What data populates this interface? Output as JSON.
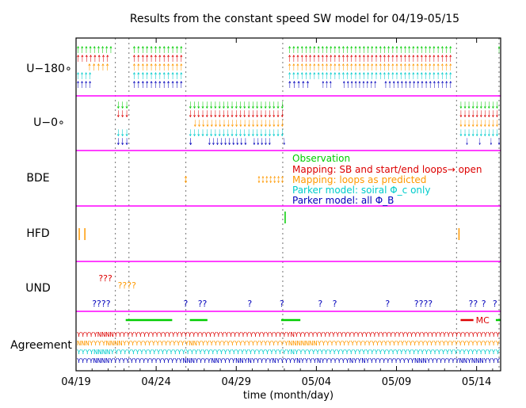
{
  "chart_data": {
    "type": "event-timeline",
    "title": "Results from the constant speed SW model for 04/19-05/15",
    "xlabel": "time (month/day)",
    "x_range_days": [
      0,
      26.5
    ],
    "x_ticks": [
      {
        "day": 0,
        "label": "04/19"
      },
      {
        "day": 5,
        "label": "04/24"
      },
      {
        "day": 10,
        "label": "04/29"
      },
      {
        "day": 15,
        "label": "05/04"
      },
      {
        "day": 20,
        "label": "05/09"
      },
      {
        "day": 25,
        "label": "05/14"
      }
    ],
    "dashed_lines_day": [
      2.45,
      3.3,
      6.85,
      12.9,
      23.75,
      26.4
    ],
    "rows": [
      {
        "name": "u180",
        "label": "U−180∘"
      },
      {
        "name": "u0",
        "label": "U−0∘"
      },
      {
        "name": "bde",
        "label": "BDE"
      },
      {
        "name": "hfd",
        "label": "HFD"
      },
      {
        "name": "und",
        "label": "UND"
      },
      {
        "name": "agreement",
        "label": "Agreement"
      }
    ],
    "colors": {
      "observation": "#00cc00",
      "mapping_sb": "#dd0000",
      "mapping_loops": "#ff9900",
      "parker_spiral": "#00cccc",
      "parker_all": "#0000bb",
      "panel_border": "#ff00ff"
    },
    "legend": [
      {
        "key": "observation",
        "text": "Observation"
      },
      {
        "key": "mapping_sb",
        "text": "Mapping: SB and start/end loops→ open"
      },
      {
        "key": "mapping_loops",
        "text": "Mapping: loops as predicted"
      },
      {
        "key": "parker_spiral",
        "text": "Parker model: soiral Φ_c only"
      },
      {
        "key": "parker_all",
        "text": "Parker model: all Φ_B"
      }
    ],
    "u180": {
      "glyph": "↑",
      "series": [
        {
          "key": "observation",
          "intervals": [
            [
              0,
              2.3
            ],
            [
              3.5,
              6.7
            ],
            [
              13.2,
              23.5
            ],
            [
              26.3,
              26.4
            ]
          ]
        },
        {
          "key": "mapping_sb",
          "intervals": [
            [
              0,
              2.1
            ],
            [
              3.5,
              6.7
            ],
            [
              13.2,
              23.5
            ]
          ]
        },
        {
          "key": "mapping_loops",
          "intervals": [
            [
              0.7,
              2.1
            ],
            [
              3.5,
              6.7
            ],
            [
              13.2,
              23.5
            ]
          ]
        },
        {
          "key": "parker_spiral",
          "intervals": [
            [
              0,
              1.0
            ],
            [
              3.5,
              6.7
            ],
            [
              13.2,
              23.5
            ]
          ]
        },
        {
          "key": "parker_all",
          "intervals": [
            [
              0,
              1.0
            ],
            [
              3.5,
              6.7
            ],
            [
              13.2,
              14.6
            ],
            [
              15.3,
              16.0
            ],
            [
              16.6,
              18.8
            ],
            [
              19.2,
              23.5
            ]
          ]
        }
      ]
    },
    "u0": {
      "glyph": "↓",
      "series": [
        {
          "key": "observation",
          "intervals": [
            [
              2.5,
              3.3
            ],
            [
              7.0,
              13.0
            ],
            [
              23.9,
              26.4
            ]
          ]
        },
        {
          "key": "mapping_sb",
          "intervals": [
            [
              2.5,
              3.3
            ],
            [
              7.0,
              13.0
            ],
            [
              23.9,
              26.4
            ]
          ]
        },
        {
          "key": "mapping_loops",
          "intervals": [
            [
              7.3,
              13.0
            ],
            [
              23.9,
              26.4
            ]
          ]
        },
        {
          "key": "parker_spiral",
          "intervals": [
            [
              2.5,
              3.3
            ],
            [
              7.0,
              13.0
            ],
            [
              23.9,
              26.4
            ]
          ]
        },
        {
          "key": "parker_all",
          "intervals": [
            [
              2.5,
              3.3
            ],
            [
              7.0,
              7.3
            ],
            [
              8.2,
              10.7
            ],
            [
              11.0,
              12.2
            ],
            [
              12.9,
              13.0
            ],
            [
              24.3,
              24.5
            ],
            [
              25.1,
              25.3
            ],
            [
              25.8,
              26.0
            ],
            [
              26.3,
              26.4
            ]
          ]
        }
      ]
    },
    "bde": {
      "glyph": "↕",
      "series": [
        {
          "key": "mapping_loops",
          "intervals": [
            [
              6.7,
              7.0
            ],
            [
              11.3,
              13.0
            ]
          ]
        }
      ]
    },
    "hfd": {
      "marks": [
        {
          "key": "observation",
          "day": 13.05,
          "level": "top"
        },
        {
          "key": "mapping_loops",
          "day": 0.2,
          "level": "mid"
        },
        {
          "key": "mapping_loops",
          "day": 0.55,
          "level": "mid"
        },
        {
          "key": "mapping_loops",
          "day": 23.9,
          "level": "mid"
        }
      ]
    },
    "und": {
      "marks": [
        {
          "key": "mapping_sb",
          "day": 1.4,
          "level": "high",
          "text": "???"
        },
        {
          "key": "mapping_loops",
          "day": 2.6,
          "level": "mid",
          "text": "????"
        },
        {
          "key": "parker_all",
          "day": 1.0,
          "level": "low",
          "text": "????"
        },
        {
          "key": "parker_all",
          "day": 6.7,
          "level": "low",
          "text": "?"
        },
        {
          "key": "parker_all",
          "day": 7.6,
          "level": "low",
          "text": "??"
        },
        {
          "key": "parker_all",
          "day": 10.7,
          "level": "low",
          "text": "?"
        },
        {
          "key": "parker_all",
          "day": 12.7,
          "level": "low",
          "text": "?"
        },
        {
          "key": "parker_all",
          "day": 15.1,
          "level": "low",
          "text": "?"
        },
        {
          "key": "parker_all",
          "day": 16.0,
          "level": "low",
          "text": "?"
        },
        {
          "key": "parker_all",
          "day": 19.3,
          "level": "low",
          "text": "?"
        },
        {
          "key": "parker_all",
          "day": 21.1,
          "level": "low",
          "text": "????"
        },
        {
          "key": "parker_all",
          "day": 24.5,
          "level": "low",
          "text": "??"
        },
        {
          "key": "parker_all",
          "day": 25.3,
          "level": "low",
          "text": "?"
        },
        {
          "key": "parker_all",
          "day": 26.0,
          "level": "low",
          "text": "?"
        }
      ]
    },
    "observation_bars": [
      [
        3.1,
        6.0
      ],
      [
        7.1,
        8.2
      ],
      [
        12.8,
        14.0
      ],
      [
        26.2,
        26.5
      ]
    ],
    "mc": {
      "label": "MC",
      "interval": [
        24.0,
        24.8
      ],
      "text_day": 24.95
    },
    "agreement": [
      {
        "key": "mapping_sb",
        "text": "YYYYYNNNNYYYYYYYYYYYYYYYYYYYYYYYYYYYYYYYYYYYYYYYYYYYNYYYYYYYYYYYYYYYYYYYYYYYYYYYYYYYYYYYYYYYYYYYYYYYYYY"
      },
      {
        "key": "mapping_loops",
        "text": "NNNYYYYNNNNYYYYYYYYYYYYYYYYNNYYYYYYYYYYYYYYYYYYYYYYNNNNNNNYYYYYYYYYYYYYYYYYYYYYYYYYYYYYYYYYYYYYYYYYYYY"
      },
      {
        "key": "parker_spiral",
        "text": "YYYYNNNNYYYYYYYYYYYYYYYYYYYYYYYYYYYYYYYYYYYYYYYYYYYNYYYYYYYYYYYYYYYYYYYYYYYYYYYYYYYYYYYYYYYYYYYYYYYYY"
      },
      {
        "key": "parker_all",
        "text": "YYYYNNNNYYYYYYYYYYYYYYYYYYNNNYYYYNNYYYYNNYNYYYYYNYYYYYNYYYYNYYYYYYYNYYNYYYYYYYYYYYYNNNYYYYYYYYNNYNNNYYYY"
      }
    ]
  }
}
